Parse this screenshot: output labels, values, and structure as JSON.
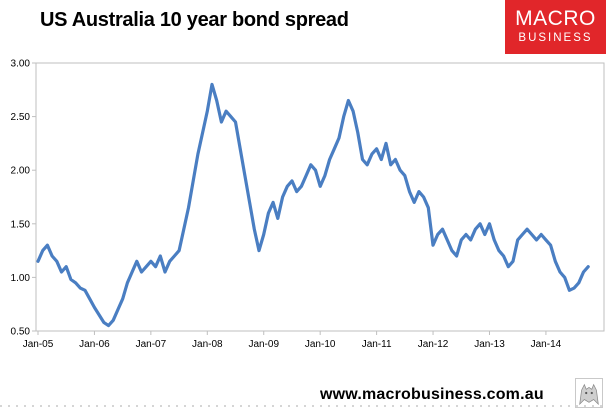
{
  "title": "US Australia 10 year bond spread",
  "logo": {
    "line1": "MACRO",
    "line2": "BUSINESS"
  },
  "footer": {
    "url": "www.macrobusiness.com.au"
  },
  "colors": {
    "series": "#4a7ec2",
    "logo_bg": "#e1262a",
    "plot_border": "#bfbfbf"
  },
  "chart_data": {
    "type": "line",
    "title": "US Australia 10 year bond spread",
    "xlabel": "",
    "ylabel": "",
    "ylim": [
      0.5,
      3.0
    ],
    "yticks": [
      "0.50",
      "1.00",
      "1.50",
      "2.00",
      "2.50",
      "3.00"
    ],
    "xticks": [
      "Jan-05",
      "Jan-06",
      "Jan-07",
      "Jan-08",
      "Jan-09",
      "Jan-10",
      "Jan-11",
      "Jan-12",
      "Jan-13",
      "Jan-14"
    ],
    "grid": false,
    "legend": "none",
    "series": [
      {
        "x": [
          "2005-01",
          "2005-02",
          "2005-03",
          "2005-04",
          "2005-05",
          "2005-06",
          "2005-07",
          "2005-08",
          "2005-09",
          "2005-10",
          "2005-11",
          "2005-12",
          "2006-01",
          "2006-02",
          "2006-03",
          "2006-04",
          "2006-05",
          "2006-06",
          "2006-07",
          "2006-08",
          "2006-09",
          "2006-10",
          "2006-11",
          "2006-12",
          "2007-01",
          "2007-02",
          "2007-03",
          "2007-04",
          "2007-05",
          "2007-06",
          "2007-07",
          "2007-08",
          "2007-09",
          "2007-10",
          "2007-11",
          "2007-12",
          "2008-01",
          "2008-02",
          "2008-03",
          "2008-04",
          "2008-05",
          "2008-06",
          "2008-07",
          "2008-08",
          "2008-09",
          "2008-10",
          "2008-11",
          "2008-12",
          "2009-01",
          "2009-02",
          "2009-03",
          "2009-04",
          "2009-05",
          "2009-06",
          "2009-07",
          "2009-08",
          "2009-09",
          "2009-10",
          "2009-11",
          "2009-12",
          "2010-01",
          "2010-02",
          "2010-03",
          "2010-04",
          "2010-05",
          "2010-06",
          "2010-07",
          "2010-08",
          "2010-09",
          "2010-10",
          "2010-11",
          "2010-12",
          "2011-01",
          "2011-02",
          "2011-03",
          "2011-04",
          "2011-05",
          "2011-06",
          "2011-07",
          "2011-08",
          "2011-09",
          "2011-10",
          "2011-11",
          "2011-12",
          "2012-01",
          "2012-02",
          "2012-03",
          "2012-04",
          "2012-05",
          "2012-06",
          "2012-07",
          "2012-08",
          "2012-09",
          "2012-10",
          "2012-11",
          "2012-12",
          "2013-01",
          "2013-02",
          "2013-03",
          "2013-04",
          "2013-05",
          "2013-06",
          "2013-07",
          "2013-08",
          "2013-09",
          "2013-10",
          "2013-11",
          "2013-12",
          "2014-01",
          "2014-02",
          "2014-03",
          "2014-04",
          "2014-05",
          "2014-06",
          "2014-07",
          "2014-08",
          "2014-09",
          "2014-10"
        ],
        "values": [
          1.15,
          1.25,
          1.3,
          1.2,
          1.15,
          1.05,
          1.1,
          0.98,
          0.95,
          0.9,
          0.88,
          0.8,
          0.72,
          0.65,
          0.58,
          0.55,
          0.6,
          0.7,
          0.8,
          0.95,
          1.05,
          1.15,
          1.05,
          1.1,
          1.15,
          1.1,
          1.2,
          1.05,
          1.15,
          1.2,
          1.25,
          1.45,
          1.65,
          1.9,
          2.15,
          2.35,
          2.55,
          2.8,
          2.65,
          2.45,
          2.55,
          2.5,
          2.45,
          2.2,
          1.95,
          1.7,
          1.45,
          1.25,
          1.4,
          1.6,
          1.7,
          1.55,
          1.75,
          1.85,
          1.9,
          1.8,
          1.85,
          1.95,
          2.05,
          2.0,
          1.85,
          1.95,
          2.1,
          2.2,
          2.3,
          2.5,
          2.65,
          2.55,
          2.35,
          2.1,
          2.05,
          2.15,
          2.2,
          2.1,
          2.25,
          2.05,
          2.1,
          2.0,
          1.95,
          1.8,
          1.7,
          1.8,
          1.75,
          1.65,
          1.3,
          1.4,
          1.45,
          1.35,
          1.25,
          1.2,
          1.35,
          1.4,
          1.35,
          1.45,
          1.5,
          1.4,
          1.5,
          1.35,
          1.25,
          1.2,
          1.1,
          1.15,
          1.35,
          1.4,
          1.45,
          1.4,
          1.35,
          1.4,
          1.35,
          1.3,
          1.15,
          1.05,
          1.0,
          0.88,
          0.9,
          0.95,
          1.05,
          1.1
        ]
      }
    ]
  }
}
